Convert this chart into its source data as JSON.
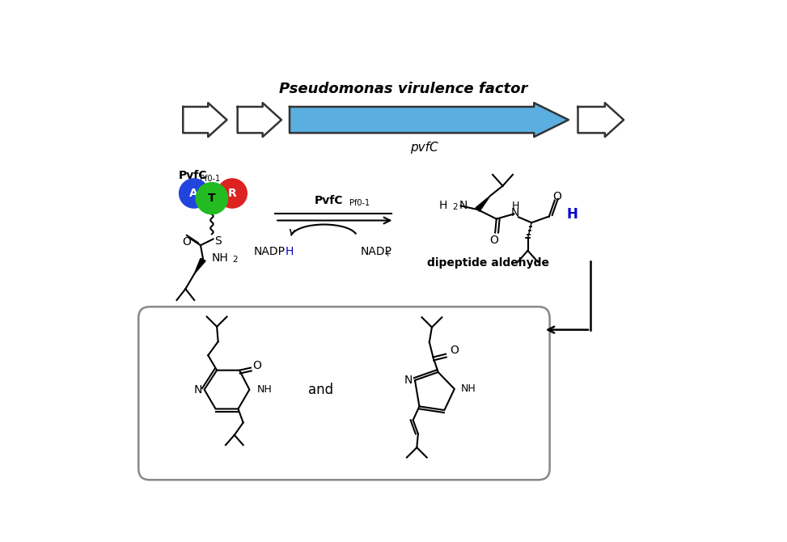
{
  "bg_color": "#ffffff",
  "arrow_blue": "#5aafe0",
  "arrow_outline": "#333333",
  "pvfc_label": "pvfC",
  "pseudomonas_label": "Pseudomonas virulence factor",
  "nadph_blue": "#0000cc",
  "dipeptide_label": "dipeptide aldehyde",
  "and_text": "and",
  "sphere_A_color": "#2244dd",
  "sphere_T_color": "#22bb22",
  "sphere_R_color": "#dd2222",
  "sphere_A_text": "A",
  "sphere_T_text": "T",
  "sphere_R_text": "R"
}
